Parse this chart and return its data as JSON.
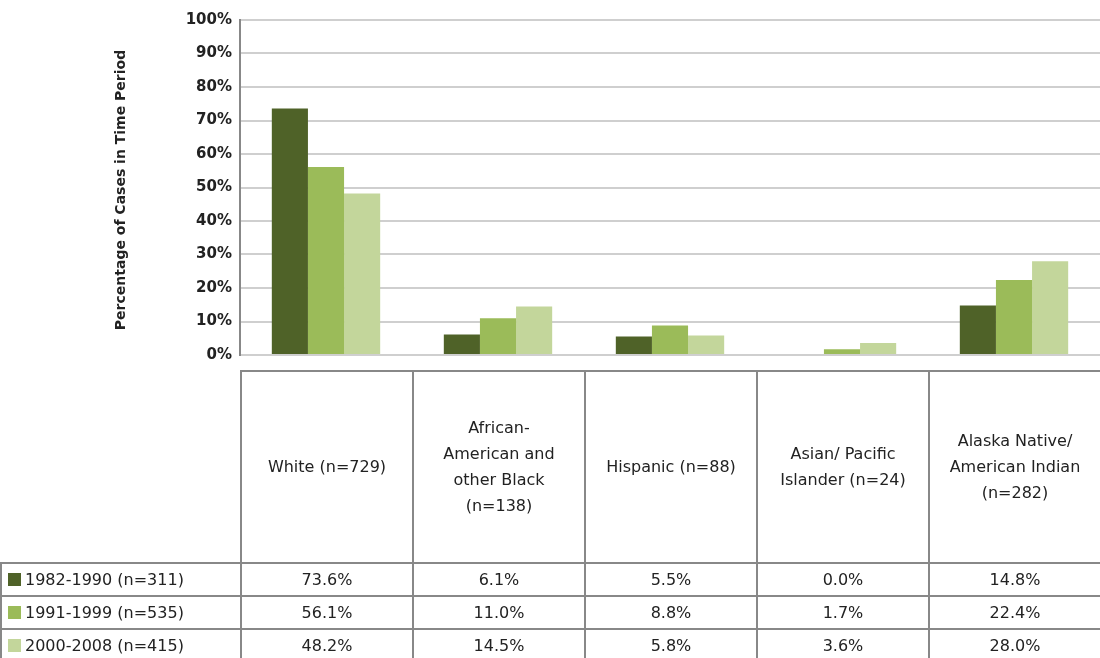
{
  "chart_data": {
    "type": "bar",
    "ylabel": "Percentage of Cases in Time Period",
    "categories": [
      "White (n=729)",
      "African-American and other Black (n=138)",
      "Hispanic (n=88)",
      "Asian/ Pacific Islander (n=24)",
      "Alaska Native/ American Indian (n=282)"
    ],
    "series": [
      {
        "name": "1982-1990 (n=311)",
        "color": "#4f6228",
        "values": [
          73.6,
          6.1,
          5.5,
          0.0,
          14.8
        ],
        "value_labels": [
          "73.6%",
          "6.1%",
          "5.5%",
          "0.0%",
          "14.8%"
        ]
      },
      {
        "name": "1991-1999 (n=535)",
        "color": "#9bbb59",
        "values": [
          56.1,
          11.0,
          8.8,
          1.7,
          22.4
        ],
        "value_labels": [
          "56.1%",
          "11.0%",
          "8.8%",
          "1.7%",
          "22.4%"
        ]
      },
      {
        "name": "2000-2008 (n=415)",
        "color": "#c3d69b",
        "values": [
          48.2,
          14.5,
          5.8,
          3.6,
          28.0
        ],
        "value_labels": [
          "48.2%",
          "14.5%",
          "5.8%",
          "3.6%",
          "28.0%"
        ]
      }
    ],
    "ylim": [
      0,
      100
    ],
    "yticks": [
      {
        "value": 0,
        "label": "0%"
      },
      {
        "value": 10,
        "label": "10%"
      },
      {
        "value": 20,
        "label": "20%"
      },
      {
        "value": 30,
        "label": "30%"
      },
      {
        "value": 40,
        "label": "40%"
      },
      {
        "value": 50,
        "label": "50%"
      },
      {
        "value": 60,
        "label": "60%"
      },
      {
        "value": 70,
        "label": "70%"
      },
      {
        "value": 80,
        "label": "80%"
      },
      {
        "value": 90,
        "label": "90%"
      },
      {
        "value": 100,
        "label": "100%"
      }
    ],
    "grid": "y",
    "legend": "bottom"
  }
}
